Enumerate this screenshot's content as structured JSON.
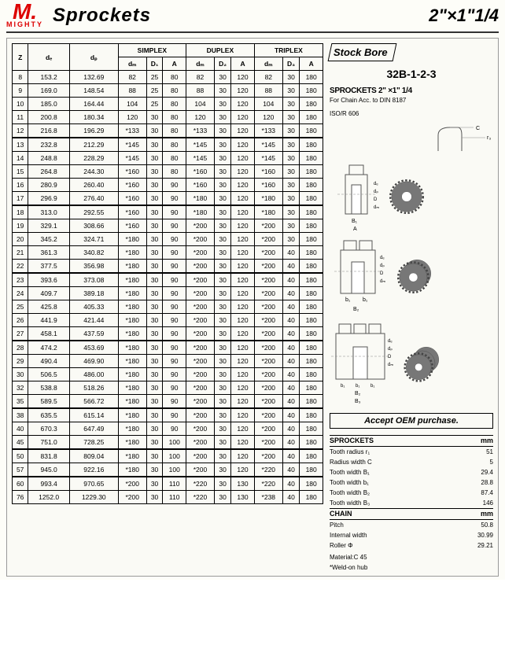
{
  "header": {
    "logo_mark": "M.",
    "logo_text": "MIGHTY",
    "title": "Sprockets",
    "subtitle": "2\"×1\"1/4"
  },
  "table": {
    "top_headers": [
      "SIMPLEX",
      "DUPLEX",
      "TRIPLEX"
    ],
    "sub_headers": [
      "Z",
      "dₑ",
      "dₚ",
      "dₘ",
      "D₁",
      "A",
      "dₘ",
      "D₂",
      "A",
      "dₘ",
      "D₃",
      "A"
    ],
    "rows": [
      [
        "8",
        "153.2",
        "132.69",
        "82",
        "25",
        "80",
        "82",
        "30",
        "120",
        "82",
        "30",
        "180"
      ],
      [
        "9",
        "169.0",
        "148.54",
        "88",
        "25",
        "80",
        "88",
        "30",
        "120",
        "88",
        "30",
        "180"
      ],
      [
        "10",
        "185.0",
        "164.44",
        "104",
        "25",
        "80",
        "104",
        "30",
        "120",
        "104",
        "30",
        "180"
      ],
      [
        "11",
        "200.8",
        "180.34",
        "120",
        "30",
        "80",
        "120",
        "30",
        "120",
        "120",
        "30",
        "180"
      ],
      [
        "12",
        "216.8",
        "196.29",
        "*133",
        "30",
        "80",
        "*133",
        "30",
        "120",
        "*133",
        "30",
        "180"
      ],
      [
        "13",
        "232.8",
        "212.29",
        "*145",
        "30",
        "80",
        "*145",
        "30",
        "120",
        "*145",
        "30",
        "180"
      ],
      [
        "14",
        "248.8",
        "228.29",
        "*145",
        "30",
        "80",
        "*145",
        "30",
        "120",
        "*145",
        "30",
        "180"
      ],
      [
        "15",
        "264.8",
        "244.30",
        "*160",
        "30",
        "80",
        "*160",
        "30",
        "120",
        "*160",
        "30",
        "180"
      ],
      [
        "16",
        "280.9",
        "260.40",
        "*160",
        "30",
        "90",
        "*160",
        "30",
        "120",
        "*160",
        "30",
        "180"
      ],
      [
        "17",
        "296.9",
        "276.40",
        "*160",
        "30",
        "90",
        "*180",
        "30",
        "120",
        "*180",
        "30",
        "180"
      ],
      [
        "18",
        "313.0",
        "292.55",
        "*160",
        "30",
        "90",
        "*180",
        "30",
        "120",
        "*180",
        "30",
        "180"
      ],
      [
        "19",
        "329.1",
        "308.66",
        "*160",
        "30",
        "90",
        "*200",
        "30",
        "120",
        "*200",
        "30",
        "180"
      ],
      [
        "20",
        "345.2",
        "324.71",
        "*180",
        "30",
        "90",
        "*200",
        "30",
        "120",
        "*200",
        "30",
        "180"
      ],
      [
        "21",
        "361.3",
        "340.82",
        "*180",
        "30",
        "90",
        "*200",
        "30",
        "120",
        "*200",
        "40",
        "180"
      ],
      [
        "22",
        "377.5",
        "356.98",
        "*180",
        "30",
        "90",
        "*200",
        "30",
        "120",
        "*200",
        "40",
        "180"
      ],
      [
        "23",
        "393.6",
        "373.08",
        "*180",
        "30",
        "90",
        "*200",
        "30",
        "120",
        "*200",
        "40",
        "180"
      ],
      [
        "24",
        "409.7",
        "389.18",
        "*180",
        "30",
        "90",
        "*200",
        "30",
        "120",
        "*200",
        "40",
        "180"
      ],
      [
        "25",
        "425.8",
        "405.33",
        "*180",
        "30",
        "90",
        "*200",
        "30",
        "120",
        "*200",
        "40",
        "180"
      ],
      [
        "26",
        "441.9",
        "421.44",
        "*180",
        "30",
        "90",
        "*200",
        "30",
        "120",
        "*200",
        "40",
        "180"
      ],
      [
        "27",
        "458.1",
        "437.59",
        "*180",
        "30",
        "90",
        "*200",
        "30",
        "120",
        "*200",
        "40",
        "180"
      ],
      [
        "28",
        "474.2",
        "453.69",
        "*180",
        "30",
        "90",
        "*200",
        "30",
        "120",
        "*200",
        "40",
        "180"
      ],
      [
        "29",
        "490.4",
        "469.90",
        "*180",
        "30",
        "90",
        "*200",
        "30",
        "120",
        "*200",
        "40",
        "180"
      ],
      [
        "30",
        "506.5",
        "486.00",
        "*180",
        "30",
        "90",
        "*200",
        "30",
        "120",
        "*200",
        "40",
        "180"
      ],
      [
        "32",
        "538.8",
        "518.26",
        "*180",
        "30",
        "90",
        "*200",
        "30",
        "120",
        "*200",
        "40",
        "180"
      ],
      [
        "35",
        "589.5",
        "566.72",
        "*180",
        "30",
        "90",
        "*200",
        "30",
        "120",
        "*200",
        "40",
        "180"
      ],
      [
        "38",
        "635.5",
        "615.14",
        "*180",
        "30",
        "90",
        "*200",
        "30",
        "120",
        "*200",
        "40",
        "180"
      ],
      [
        "40",
        "670.3",
        "647.49",
        "*180",
        "30",
        "90",
        "*200",
        "30",
        "120",
        "*200",
        "40",
        "180"
      ],
      [
        "45",
        "751.0",
        "728.25",
        "*180",
        "30",
        "100",
        "*200",
        "30",
        "120",
        "*200",
        "40",
        "180"
      ],
      [
        "50",
        "831.8",
        "809.04",
        "*180",
        "30",
        "100",
        "*200",
        "30",
        "120",
        "*200",
        "40",
        "180"
      ],
      [
        "57",
        "945.0",
        "922.16",
        "*180",
        "30",
        "100",
        "*200",
        "30",
        "120",
        "*220",
        "40",
        "180"
      ],
      [
        "60",
        "993.4",
        "970.65",
        "*200",
        "30",
        "110",
        "*220",
        "30",
        "130",
        "*220",
        "40",
        "180"
      ],
      [
        "76",
        "1252.0",
        "1229.30",
        "*200",
        "30",
        "110",
        "*220",
        "30",
        "130",
        "*238",
        "40",
        "180"
      ]
    ],
    "thick_before": [
      5,
      10,
      15,
      20,
      25,
      28,
      30
    ]
  },
  "right": {
    "stockbore": "Stock Bore",
    "partnum": "32B-1-2-3",
    "spec_title": "SPROCKETS 2\" ×1\" 1/4",
    "spec_sub1": "For Chain Acc. to DIN 8187",
    "spec_sub2": "ISO/R 606",
    "oem": "Accept OEM purchase.",
    "specs": [
      {
        "h": "SPROCKETS",
        "u": "mm"
      },
      {
        "l": "Tooth radius r₁",
        "v": "51"
      },
      {
        "l": "Radius width C",
        "v": "5"
      },
      {
        "l": "Tooth width B₁",
        "v": "29.4"
      },
      {
        "l": "Tooth width b₁",
        "v": "28.8"
      },
      {
        "l": "Tooth width B₂",
        "v": "87.4"
      },
      {
        "l": "Tooth width B₃",
        "v": "146"
      },
      {
        "h": "CHAIN",
        "u": "mm"
      },
      {
        "l": "Pitch",
        "v": "50.8"
      },
      {
        "l": "Internal width",
        "v": "30.99"
      },
      {
        "l": "Roller Φ",
        "v": "29.21"
      }
    ],
    "material": "Material:C 45",
    "weldon": "*Weld-on hub",
    "diagrams": {
      "tooth_labels": [
        "C",
        "r₃"
      ],
      "simplex_labels": [
        "B₁",
        "A"
      ],
      "duplex_labels": [
        "b₁",
        "b₁",
        "B₂"
      ],
      "triplex_labels": [
        "b₁",
        "b₁",
        "b₁",
        "B₂",
        "B₃"
      ],
      "radial_labels": [
        "dₑ",
        "dₚ",
        "D",
        "dₘ"
      ]
    }
  }
}
